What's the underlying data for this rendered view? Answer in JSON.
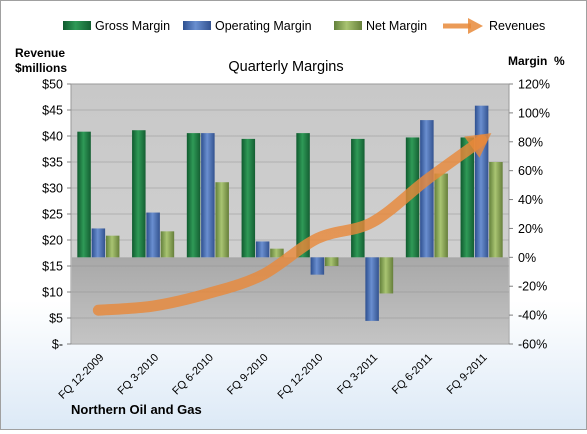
{
  "chart_data": {
    "type": "bar",
    "title": "Quarterly Margins",
    "company": "Northern Oil and Gas",
    "left_axis": {
      "label_line1": "Revenue",
      "label_line2": "$millions",
      "ylim": [
        0,
        50
      ],
      "ticks": [
        0,
        5,
        10,
        15,
        20,
        25,
        30,
        35,
        40,
        45,
        50
      ],
      "tick_labels": [
        "$-",
        "$5",
        "$10",
        "$15",
        "$20",
        "$25",
        "$30",
        "$35",
        "$40",
        "$45",
        "$50"
      ]
    },
    "right_axis": {
      "label": "Margin  %",
      "ylim": [
        -60,
        120
      ],
      "ticks": [
        -60,
        -40,
        -20,
        0,
        20,
        40,
        60,
        80,
        100,
        120
      ],
      "tick_labels": [
        "-60%",
        "-40%",
        "-20%",
        "0%",
        "20%",
        "40%",
        "60%",
        "80%",
        "100%",
        "120%"
      ]
    },
    "categories": [
      "FQ 12-2009",
      "FQ 3-2010",
      "FQ 6-2010",
      "FQ 9-2010",
      "FQ 12-2010",
      "FQ 3-2011",
      "FQ 6-2011",
      "FQ 9-2011"
    ],
    "series": [
      {
        "name": "Gross Margin",
        "axis": "right",
        "color": "#1e7d45",
        "values": [
          87,
          88,
          86,
          82,
          86,
          82,
          83,
          83
        ]
      },
      {
        "name": "Operating Margin",
        "axis": "right",
        "color": "#4a6fb5",
        "values": [
          20,
          31,
          86,
          11,
          -12,
          -44,
          95,
          105
        ]
      },
      {
        "name": "Net Margin",
        "axis": "right",
        "color": "#8aab4c",
        "values": [
          15,
          18,
          52,
          6,
          -6,
          -25,
          58,
          66
        ]
      },
      {
        "name": "Revenues",
        "axis": "left",
        "type": "line",
        "color": "#e8893a",
        "values": [
          6.5,
          7.3,
          9.7,
          13.3,
          20.3,
          23.4,
          31.6,
          39.2
        ]
      }
    ],
    "grid": true,
    "legend_position": "top"
  }
}
